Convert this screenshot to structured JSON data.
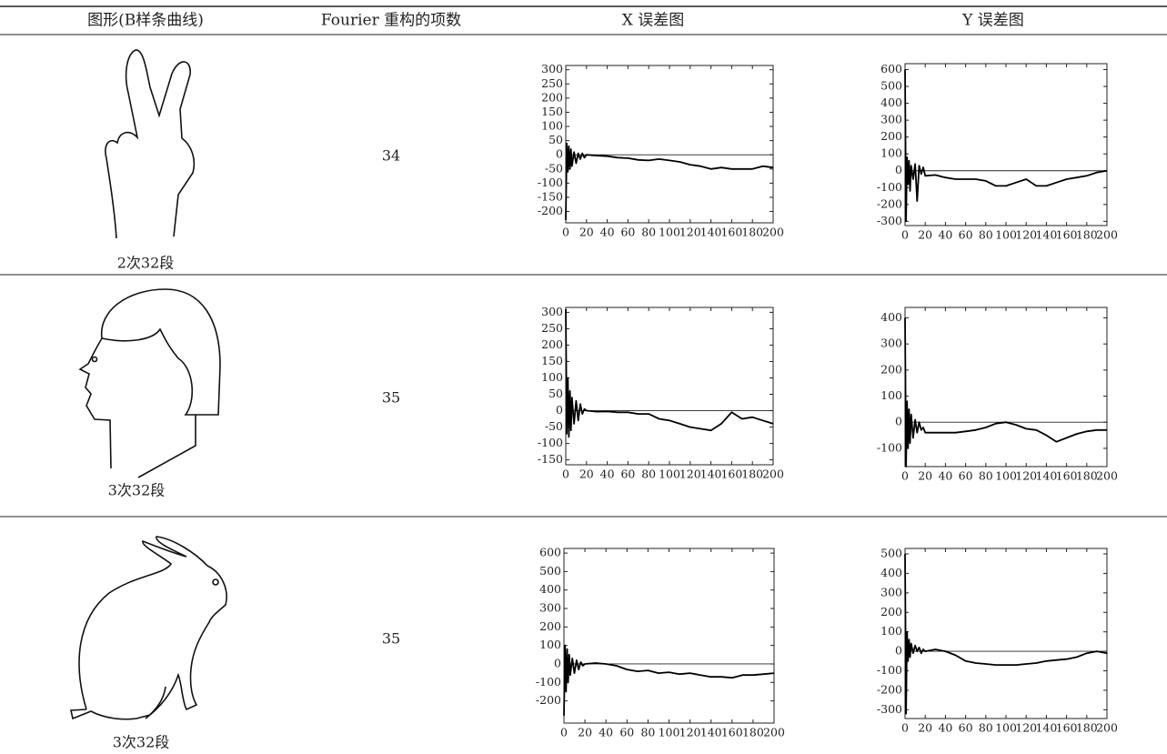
{
  "table": {
    "header": [
      "图形(B样条曲线)",
      "Fourier 重构的项数",
      "X 误差图",
      "Y 误差图"
    ],
    "rows": [
      {
        "shape_label": "2次32段",
        "terms": 34,
        "x_error": {
          "type": "line",
          "color": "#000000",
          "hline": 0,
          "x": [
            0,
            1,
            2,
            3,
            4,
            5,
            6,
            8,
            10,
            12,
            14,
            16,
            18,
            20,
            30,
            40,
            50,
            60,
            70,
            80,
            90,
            100,
            110,
            120,
            130,
            140,
            150,
            160,
            170,
            180,
            190,
            200
          ],
          "values": [
            -230,
            40,
            -60,
            30,
            -50,
            20,
            -40,
            10,
            -30,
            5,
            -15,
            5,
            -10,
            0,
            -3,
            -5,
            -10,
            -12,
            -18,
            -20,
            -15,
            -20,
            -25,
            -35,
            -40,
            -50,
            -45,
            -50,
            -50,
            -50,
            -40,
            -45
          ],
          "xlim": [
            0,
            200
          ],
          "xticks": [
            0,
            20,
            40,
            60,
            80,
            100,
            120,
            140,
            160,
            180,
            200
          ],
          "ylim": [
            -240,
            315
          ],
          "yticks": [
            300,
            250,
            200,
            150,
            100,
            50,
            0,
            -50,
            -100,
            -150,
            -200
          ]
        },
        "y_error": {
          "type": "line",
          "color": "#000000",
          "hline": 0,
          "x": [
            0,
            1,
            2,
            3,
            4,
            5,
            6,
            8,
            10,
            12,
            14,
            16,
            18,
            20,
            30,
            40,
            50,
            60,
            70,
            80,
            90,
            100,
            110,
            120,
            130,
            140,
            150,
            160,
            170,
            180,
            190,
            200
          ],
          "values": [
            600,
            -300,
            80,
            -80,
            60,
            -120,
            30,
            -50,
            40,
            -180,
            30,
            -20,
            20,
            -30,
            -25,
            -40,
            -50,
            -50,
            -50,
            -60,
            -90,
            -90,
            -70,
            -50,
            -90,
            -90,
            -70,
            -50,
            -40,
            -30,
            -10,
            0
          ],
          "xlim": [
            0,
            200
          ],
          "xticks": [
            0,
            20,
            40,
            60,
            80,
            100,
            120,
            140,
            160,
            180,
            200
          ],
          "ylim": [
            -325,
            635
          ],
          "yticks": [
            600,
            500,
            400,
            300,
            200,
            100,
            0,
            -100,
            -200,
            -300
          ]
        }
      },
      {
        "shape_label": "3次32段",
        "terms": 35,
        "x_error": {
          "type": "line",
          "color": "#000000",
          "hline": 0,
          "x": [
            0,
            1,
            2,
            3,
            4,
            5,
            6,
            8,
            10,
            12,
            14,
            16,
            18,
            20,
            30,
            40,
            50,
            60,
            70,
            80,
            90,
            100,
            110,
            120,
            130,
            140,
            150,
            160,
            170,
            180,
            190,
            200
          ],
          "values": [
            310,
            -70,
            100,
            -80,
            60,
            -60,
            40,
            -40,
            30,
            -30,
            20,
            -10,
            5,
            0,
            -3,
            -2,
            -5,
            -5,
            -10,
            -10,
            -25,
            -30,
            -40,
            -50,
            -55,
            -60,
            -40,
            -5,
            -25,
            -20,
            -30,
            -40
          ],
          "xlim": [
            0,
            200
          ],
          "xticks": [
            0,
            20,
            40,
            60,
            80,
            100,
            120,
            140,
            160,
            180,
            200
          ],
          "ylim": [
            -165,
            315
          ],
          "yticks": [
            300,
            250,
            200,
            150,
            100,
            50,
            0,
            -50,
            -100,
            -150
          ]
        },
        "y_error": {
          "type": "line",
          "color": "#000000",
          "hline": 0,
          "x": [
            0,
            1,
            2,
            3,
            4,
            5,
            6,
            8,
            10,
            12,
            14,
            16,
            18,
            20,
            30,
            40,
            50,
            60,
            70,
            80,
            90,
            100,
            110,
            120,
            130,
            140,
            150,
            160,
            170,
            180,
            190,
            200
          ],
          "values": [
            400,
            -170,
            80,
            -100,
            50,
            -80,
            30,
            -60,
            10,
            -40,
            0,
            -30,
            -20,
            -40,
            -40,
            -40,
            -40,
            -35,
            -30,
            -20,
            -5,
            0,
            -10,
            -25,
            -30,
            -50,
            -75,
            -60,
            -45,
            -35,
            -30,
            -30
          ],
          "xlim": [
            0,
            200
          ],
          "xticks": [
            0,
            20,
            40,
            60,
            80,
            100,
            120,
            140,
            160,
            180,
            200
          ],
          "ylim": [
            -170,
            440
          ],
          "yticks": [
            400,
            300,
            200,
            100,
            0,
            -100
          ]
        }
      },
      {
        "shape_label": "3次32段",
        "terms": 35,
        "x_error": {
          "type": "line",
          "color": "#000000",
          "hline": 0,
          "x": [
            0,
            1,
            2,
            3,
            4,
            5,
            6,
            8,
            10,
            12,
            14,
            16,
            18,
            20,
            30,
            40,
            50,
            60,
            70,
            80,
            90,
            100,
            110,
            120,
            130,
            140,
            150,
            160,
            170,
            180,
            190,
            200
          ],
          "values": [
            -280,
            100,
            -150,
            80,
            -100,
            50,
            -60,
            30,
            -50,
            20,
            -30,
            10,
            -10,
            0,
            5,
            0,
            -10,
            -30,
            -40,
            -35,
            -50,
            -45,
            -55,
            -50,
            -60,
            -70,
            -70,
            -75,
            -60,
            -60,
            -55,
            -50
          ],
          "xlim": [
            0,
            200
          ],
          "xticks": [
            0,
            20,
            40,
            60,
            80,
            100,
            120,
            140,
            160,
            180,
            200
          ],
          "ylim": [
            -320,
            625
          ],
          "yticks": [
            600,
            500,
            400,
            300,
            200,
            100,
            0,
            -100,
            -200
          ]
        },
        "y_error": {
          "type": "line",
          "color": "#000000",
          "hline": 0,
          "x": [
            0,
            1,
            2,
            3,
            4,
            5,
            6,
            8,
            10,
            12,
            14,
            16,
            18,
            20,
            30,
            40,
            50,
            60,
            70,
            80,
            90,
            100,
            110,
            120,
            130,
            140,
            150,
            160,
            170,
            180,
            190,
            200
          ],
          "values": [
            500,
            -320,
            100,
            -50,
            60,
            -30,
            40,
            -10,
            30,
            0,
            20,
            -10,
            10,
            0,
            10,
            0,
            -20,
            -50,
            -60,
            -65,
            -70,
            -70,
            -70,
            -65,
            -60,
            -50,
            -45,
            -40,
            -30,
            -10,
            0,
            -10
          ],
          "xlim": [
            0,
            200
          ],
          "xticks": [
            0,
            20,
            40,
            60,
            80,
            100,
            120,
            140,
            160,
            180,
            200
          ],
          "ylim": [
            -345,
            528
          ],
          "yticks": [
            500,
            400,
            300,
            200,
            100,
            0,
            -100,
            -200,
            -300
          ]
        }
      }
    ]
  }
}
